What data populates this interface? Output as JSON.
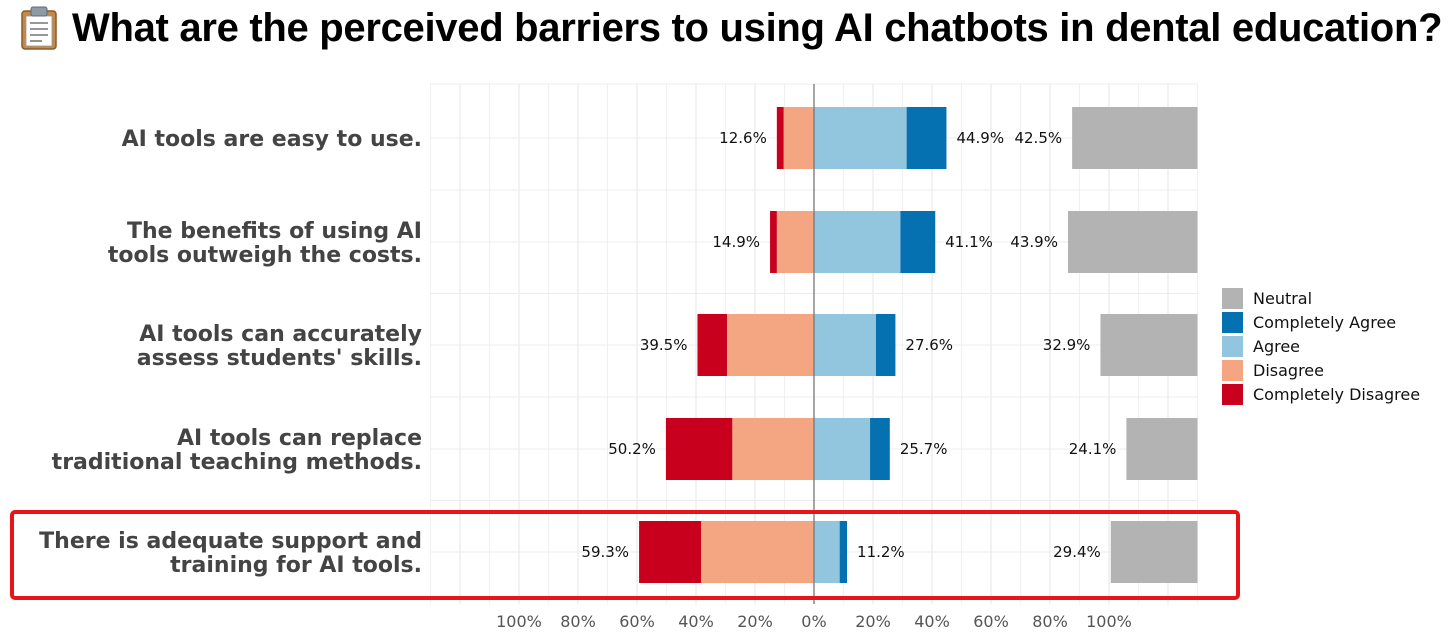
{
  "header": {
    "title": "What are the perceived barriers to using AI chatbots in dental education?",
    "icon": "clipboard-icon"
  },
  "chart_data": {
    "type": "bar",
    "subtype": "diverging-stacked-likert",
    "categories": [
      "AI tools are easy to use.",
      "The benefits of using AI tools outweigh the costs.",
      "AI tools can accurately assess students' skills.",
      "AI tools can replace traditional teaching methods.",
      "There is adequate support and training for AI tools."
    ],
    "category_lines": [
      [
        "AI tools are easy to use."
      ],
      [
        "The benefits of using AI",
        "tools outweigh the costs."
      ],
      [
        "AI tools can accurately",
        "assess students' skills."
      ],
      [
        "AI tools can replace",
        "traditional teaching methods."
      ],
      [
        "There is adequate support and",
        "training for AI tools."
      ]
    ],
    "series": [
      {
        "name": "Completely Disagree",
        "color": "#c8001e",
        "side": "left",
        "values": [
          2.3,
          2.3,
          10.0,
          22.5,
          21.0
        ]
      },
      {
        "name": "Disagree",
        "color": "#f4a582",
        "side": "left",
        "values": [
          10.3,
          12.6,
          29.5,
          27.7,
          38.3
        ]
      },
      {
        "name": "Agree",
        "color": "#92c5de",
        "side": "right",
        "values": [
          31.4,
          29.3,
          21.0,
          19.0,
          8.7
        ]
      },
      {
        "name": "Completely Agree",
        "color": "#0571b0",
        "side": "right",
        "values": [
          13.5,
          11.8,
          6.6,
          6.7,
          2.5
        ]
      },
      {
        "name": "Neutral",
        "color": "#b3b3b3",
        "side": "neutral",
        "values": [
          42.5,
          43.9,
          32.9,
          24.1,
          29.4
        ]
      }
    ],
    "disagree_labels": [
      "12.6%",
      "14.9%",
      "39.5%",
      "50.2%",
      "59.3%"
    ],
    "agree_labels": [
      "44.9%",
      "41.1%",
      "27.6%",
      "25.7%",
      "11.2%"
    ],
    "neutral_labels": [
      "42.5%",
      "43.9%",
      "32.9%",
      "24.1%",
      "29.4%"
    ],
    "x_ticks": [
      -100,
      -80,
      -60,
      -40,
      -20,
      0,
      20,
      40,
      60,
      80,
      100
    ],
    "x_tick_labels": [
      "100%",
      "80%",
      "60%",
      "40%",
      "20%",
      "0%",
      "20%",
      "40%",
      "60%",
      "80%",
      "100%"
    ],
    "xlim": [
      -130,
      130
    ],
    "neutral_axis_end": 130,
    "legend": {
      "placement": "right",
      "order": [
        "Neutral",
        "Completely Agree",
        "Agree",
        "Disagree",
        "Completely Disagree"
      ]
    },
    "highlight": {
      "category_index": 4,
      "color": "#e8141a"
    },
    "grid": true
  }
}
